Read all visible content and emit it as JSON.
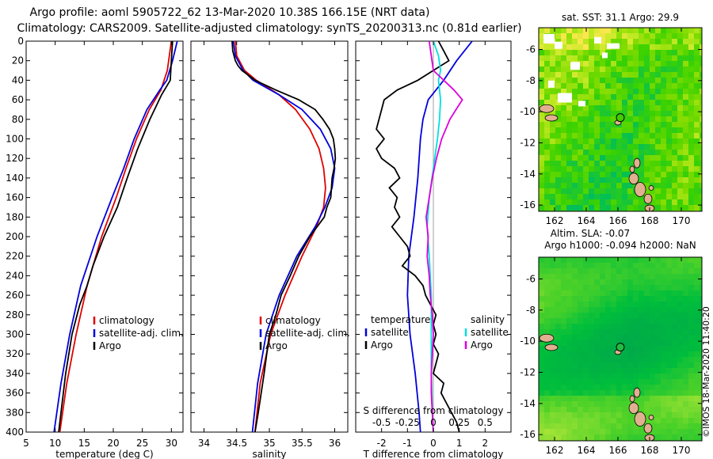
{
  "header": {
    "title_line1": "Argo profile: aoml 5905722_62 13-Mar-2020 10.38S 166.15E (NRT data)",
    "title_line2": "Climatology: CARS2009. Satellite-adjusted climatology: synTS_20200313.nc (0.81d earlier)"
  },
  "footer_stamp": "©IMOS 18-Mar-2020 11:40:20",
  "colors": {
    "climatology": "#e00000",
    "satellite": "#0000dd",
    "argo": "#000000",
    "salinity_satellite": "#00e0e0",
    "salinity_argo": "#dd00dd",
    "land": "#e0b090",
    "sst_high": "#66dd00",
    "sla_low": "#00bb44"
  },
  "chart_data": [
    {
      "name": "temperature",
      "type": "line",
      "xlabel": "temperature (deg C)",
      "ylabel": "",
      "xlim": [
        5,
        32
      ],
      "ylim": [
        400,
        0
      ],
      "xticks": [
        5,
        10,
        15,
        20,
        25,
        30
      ],
      "yticks": [
        0,
        20,
        40,
        60,
        80,
        100,
        120,
        140,
        160,
        180,
        200,
        220,
        240,
        260,
        280,
        300,
        320,
        340,
        360,
        380,
        400
      ],
      "legend": [
        "climatology",
        "satellite-adj. clim.",
        "Argo"
      ],
      "series": [
        {
          "name": "climatology",
          "color": "#e00000",
          "depth": [
            0,
            30,
            50,
            70,
            100,
            130,
            160,
            200,
            250,
            300,
            350,
            400
          ],
          "values": [
            30.0,
            29.3,
            28.2,
            26.2,
            24.0,
            22.2,
            20.5,
            18.0,
            15.5,
            13.6,
            12.0,
            10.8
          ]
        },
        {
          "name": "satellite-adj. clim.",
          "color": "#0000dd",
          "depth": [
            0,
            20,
            40,
            50,
            70,
            100,
            130,
            160,
            200,
            250,
            300,
            350,
            400
          ],
          "values": [
            31.0,
            30.2,
            29.2,
            28.0,
            25.8,
            23.6,
            21.8,
            19.8,
            17.2,
            14.4,
            12.5,
            11.0,
            9.8
          ]
        },
        {
          "name": "Argo",
          "color": "#000000",
          "depth": [
            0,
            20,
            40,
            55,
            80,
            110,
            140,
            170,
            200,
            230,
            250,
            270,
            300,
            340,
            380,
            400
          ],
          "values": [
            30.2,
            30.0,
            29.8,
            28.3,
            26.3,
            24.2,
            22.4,
            20.7,
            18.4,
            16.5,
            15.5,
            14.2,
            12.9,
            11.8,
            11.0,
            10.6
          ]
        }
      ]
    },
    {
      "name": "salinity",
      "type": "line",
      "xlabel": "salinity",
      "ylabel": "",
      "xlim": [
        33.8,
        36.2
      ],
      "ylim": [
        400,
        0
      ],
      "xticks": [
        34,
        34.5,
        35,
        35.5,
        36
      ],
      "xtick_labels": [
        "34",
        "34.5",
        "35",
        "35.5",
        "36"
      ],
      "legend": [
        "climatology",
        "satellite-adj. clim.",
        "Argo"
      ],
      "series": [
        {
          "name": "climatology",
          "color": "#e00000",
          "depth": [
            0,
            15,
            30,
            40,
            55,
            70,
            90,
            110,
            130,
            150,
            170,
            190,
            220,
            260,
            300,
            350,
            400
          ],
          "values": [
            34.48,
            34.5,
            34.62,
            34.8,
            35.15,
            35.4,
            35.62,
            35.76,
            35.83,
            35.86,
            35.83,
            35.72,
            35.5,
            35.24,
            35.02,
            34.86,
            34.78
          ]
        },
        {
          "name": "satellite-adj. clim.",
          "color": "#0000dd",
          "depth": [
            0,
            15,
            30,
            40,
            55,
            70,
            90,
            110,
            130,
            150,
            170,
            190,
            220,
            260,
            300,
            350,
            400
          ],
          "values": [
            34.45,
            34.48,
            34.6,
            34.75,
            35.15,
            35.5,
            35.78,
            35.94,
            36.0,
            35.96,
            35.85,
            35.7,
            35.42,
            35.15,
            34.95,
            34.82,
            34.74
          ]
        },
        {
          "name": "Argo",
          "color": "#000000",
          "depth": [
            0,
            10,
            20,
            25,
            30,
            40,
            50,
            60,
            70,
            80,
            90,
            100,
            110,
            120,
            130,
            140,
            150,
            160,
            170,
            180,
            200,
            220,
            240,
            260,
            280,
            300,
            340,
            380,
            400
          ],
          "values": [
            34.43,
            34.44,
            34.48,
            34.52,
            34.58,
            34.78,
            35.1,
            35.45,
            35.7,
            35.82,
            35.92,
            35.98,
            36.0,
            36.01,
            35.99,
            35.96,
            35.95,
            35.94,
            35.88,
            35.84,
            35.62,
            35.45,
            35.32,
            35.18,
            35.1,
            35.0,
            34.92,
            34.83,
            34.78
          ]
        }
      ]
    },
    {
      "name": "difference",
      "type": "line",
      "xlabel": "T difference from climatology",
      "top_axis_label": "S difference from climatology",
      "xlim": [
        -3,
        3
      ],
      "ylim": [
        400,
        0
      ],
      "xticks": [
        -2,
        -1,
        0,
        1,
        2
      ],
      "top_xticks": [
        -0.5,
        -0.25,
        0,
        0.25,
        0.5
      ],
      "top_xtick_labels": [
        "-0.5",
        "-0.25",
        "0",
        "0.25",
        "0.5"
      ],
      "legend_temperature_title": "temperature",
      "legend_salinity_title": "salinity",
      "legend_temperature": [
        "satellite",
        "Argo"
      ],
      "legend_salinity": [
        "satellite",
        "Argo"
      ],
      "series": [
        {
          "name": "T satellite",
          "color": "#0000dd",
          "depth": [
            0,
            20,
            40,
            60,
            80,
            100,
            140,
            180,
            220,
            260,
            300,
            340,
            380,
            400
          ],
          "values": [
            1.5,
            0.9,
            0.4,
            -0.2,
            -0.4,
            -0.5,
            -0.6,
            -0.75,
            -0.95,
            -1.0,
            -0.9,
            -0.7,
            -0.55,
            -0.5
          ]
        },
        {
          "name": "T Argo",
          "color": "#000000",
          "depth": [
            0,
            10,
            20,
            30,
            40,
            50,
            60,
            70,
            80,
            90,
            100,
            110,
            120,
            130,
            140,
            150,
            160,
            170,
            180,
            190,
            200,
            210,
            220,
            230,
            240,
            250,
            260,
            270,
            280,
            290,
            300,
            310,
            320,
            330,
            340,
            350,
            360,
            370,
            380,
            390,
            400
          ],
          "values": [
            0.2,
            0.4,
            0.6,
            0.0,
            -0.6,
            -1.4,
            -1.9,
            -2.0,
            -2.1,
            -2.2,
            -1.9,
            -2.2,
            -2.0,
            -1.5,
            -1.3,
            -1.7,
            -1.4,
            -1.5,
            -1.3,
            -1.6,
            -1.3,
            -1.0,
            -0.9,
            -1.2,
            -0.7,
            -0.4,
            -0.3,
            -0.1,
            0.1,
            0.0,
            0.1,
            0.0,
            0.2,
            0.1,
            0.0,
            0.4,
            0.3,
            0.5,
            0.7,
            0.9,
            1.0
          ]
        },
        {
          "name": "S satellite",
          "color": "#00e0e0",
          "depth": [
            0,
            15,
            30,
            40,
            60,
            80,
            100,
            130,
            160,
            190,
            220,
            260,
            300,
            340,
            380,
            400
          ],
          "values": [
            0.0,
            0.05,
            0.07,
            0.05,
            0.07,
            0.06,
            0.04,
            0.0,
            -0.04,
            -0.06,
            -0.04,
            -0.02,
            -0.02,
            -0.02,
            -0.01,
            0.0
          ]
        },
        {
          "name": "S Argo",
          "color": "#dd00dd",
          "depth": [
            0,
            15,
            30,
            40,
            50,
            60,
            70,
            80,
            90,
            100,
            120,
            140,
            160,
            180,
            200,
            220,
            240,
            260,
            280,
            300,
            320,
            340,
            360,
            380,
            400
          ],
          "values": [
            -0.04,
            -0.02,
            0.0,
            0.1,
            0.2,
            0.28,
            0.22,
            0.16,
            0.12,
            0.08,
            0.03,
            -0.01,
            -0.04,
            -0.07,
            -0.05,
            -0.06,
            -0.04,
            -0.03,
            -0.01,
            0.0,
            -0.01,
            -0.02,
            -0.02,
            -0.01,
            0.0
          ]
        }
      ]
    },
    {
      "name": "sst_map",
      "type": "heatmap",
      "title": "sat. SST: 31.1 Argo: 29.9",
      "xticks": [
        162,
        164,
        166,
        168,
        170
      ],
      "yticks": [
        -6,
        -8,
        -10,
        -12,
        -14,
        -16
      ],
      "xlim": [
        161,
        171.3
      ],
      "ylim": [
        -16.4,
        -4.6
      ],
      "argo_position": {
        "lon": 166.15,
        "lat": -10.38
      }
    },
    {
      "name": "sla_map",
      "type": "heatmap",
      "title": "Altim. SLA: -0.07",
      "subtitle": "Argo h1000: -0.094 h2000: NaN",
      "xticks": [
        162,
        164,
        166,
        168,
        170
      ],
      "yticks": [
        -6,
        -8,
        -10,
        -12,
        -14,
        -16
      ],
      "xlim": [
        161,
        171.3
      ],
      "ylim": [
        -16.4,
        -4.6
      ],
      "argo_position": {
        "lon": 166.15,
        "lat": -10.38
      }
    }
  ]
}
